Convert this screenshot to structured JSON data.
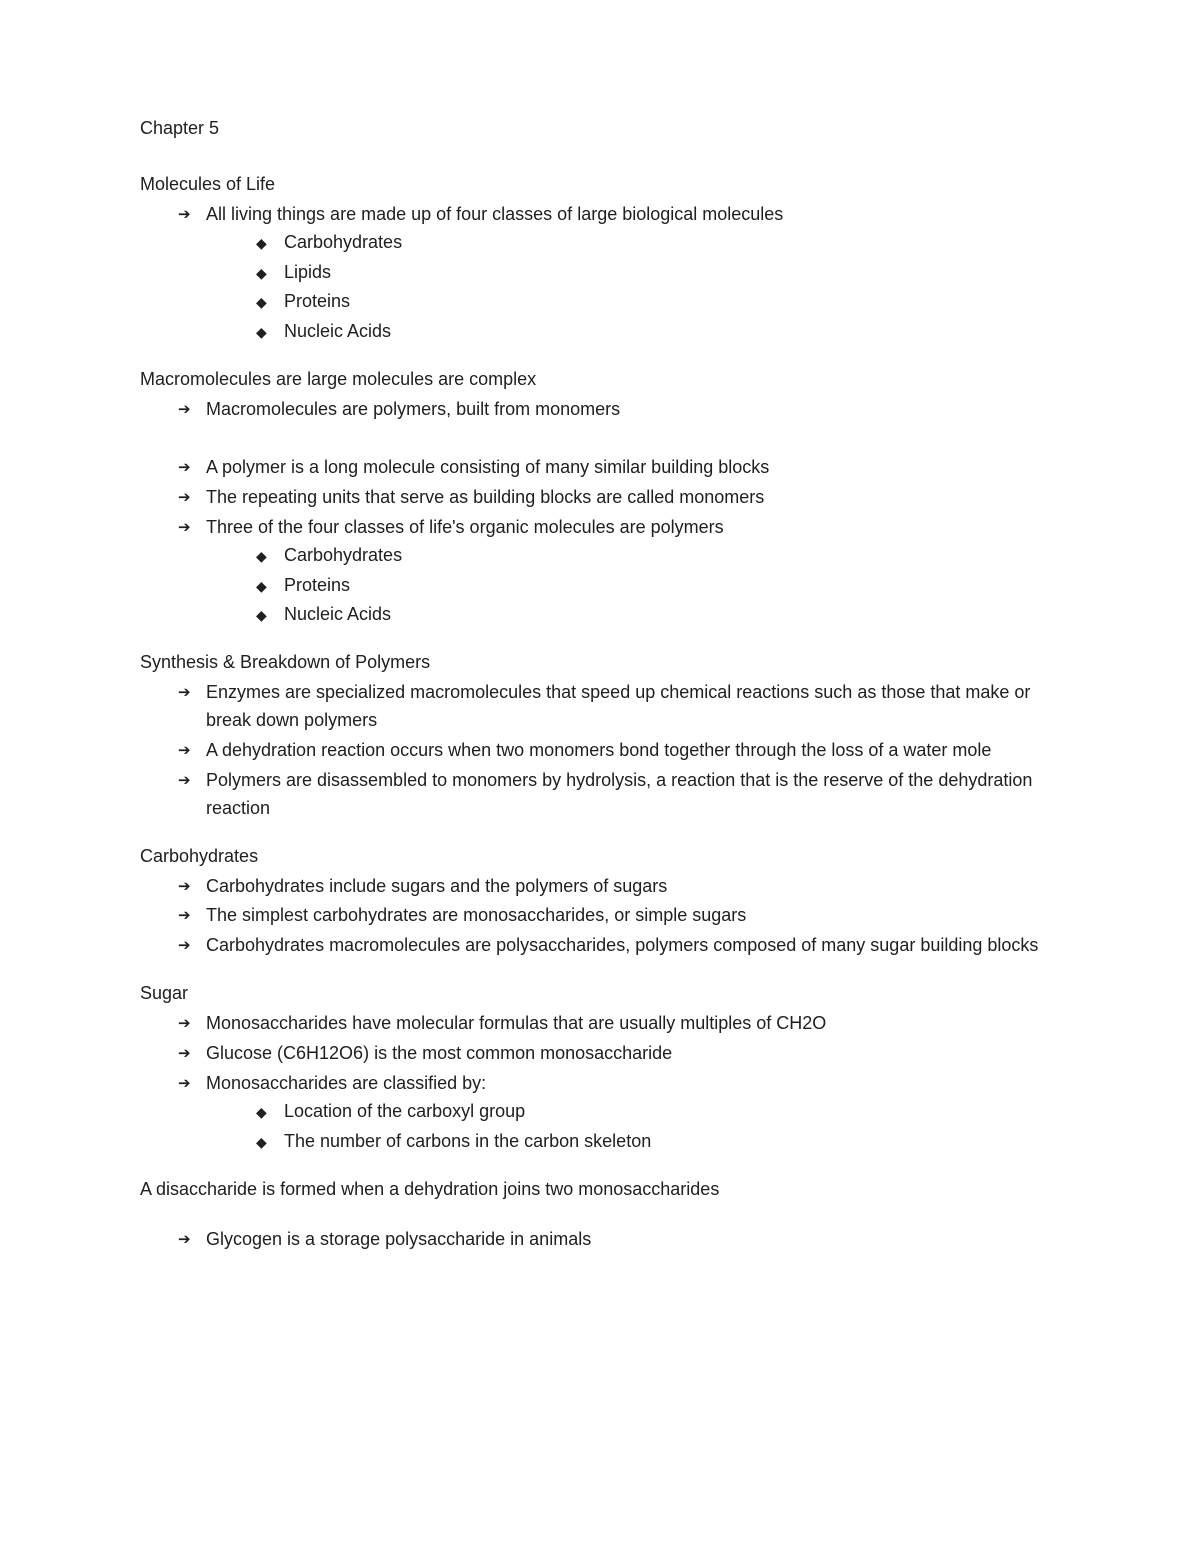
{
  "chapter_title": "Chapter 5",
  "sections": {
    "s1": {
      "heading": "Molecules of Life",
      "items": [
        "All living things are made up of four classes of large biological molecules"
      ],
      "subitems_0": [
        "Carbohydrates",
        "Lipids",
        "Proteins",
        "Nucleic Acids"
      ]
    },
    "s2": {
      "heading": "Macromolecules are large molecules are complex",
      "items_a": [
        "Macromolecules are polymers, built from monomers"
      ],
      "items_b": [
        "A polymer is a long molecule consisting of many similar building blocks",
        "The repeating units that serve as building blocks are called monomers",
        "Three of the four classes of life's organic molecules are polymers"
      ],
      "subitems_b2": [
        "Carbohydrates",
        "Proteins",
        "Nucleic Acids"
      ]
    },
    "s3": {
      "heading": "Synthesis & Breakdown of Polymers",
      "items": [
        "Enzymes are specialized macromolecules that speed up chemical reactions such as those that make or break down polymers",
        "A dehydration reaction occurs when two monomers bond together through the loss of a water mole",
        "Polymers are disassembled to monomers by hydrolysis, a reaction that is the reserve of the dehydration reaction"
      ]
    },
    "s4": {
      "heading": "Carbohydrates",
      "items": [
        "Carbohydrates include sugars and the polymers of sugars",
        "The simplest carbohydrates are monosaccharides, or simple sugars",
        "Carbohydrates macromolecules are polysaccharides, polymers composed of many sugar building blocks"
      ]
    },
    "s5": {
      "heading": "Sugar",
      "items": [
        "Monosaccharides have molecular formulas that are usually multiples of CH2O",
        "Glucose (C6H12O6) is the most common monosaccharide",
        "Monosaccharides are classified by:"
      ],
      "subitems_2": [
        "Location of the carboxyl group",
        "The number of carbons in the carbon skeleton"
      ]
    },
    "s6": {
      "heading": "A disaccharide is formed when a dehydration joins two monosaccharides",
      "items": [
        "Glycogen is a storage polysaccharide in animals"
      ]
    }
  }
}
